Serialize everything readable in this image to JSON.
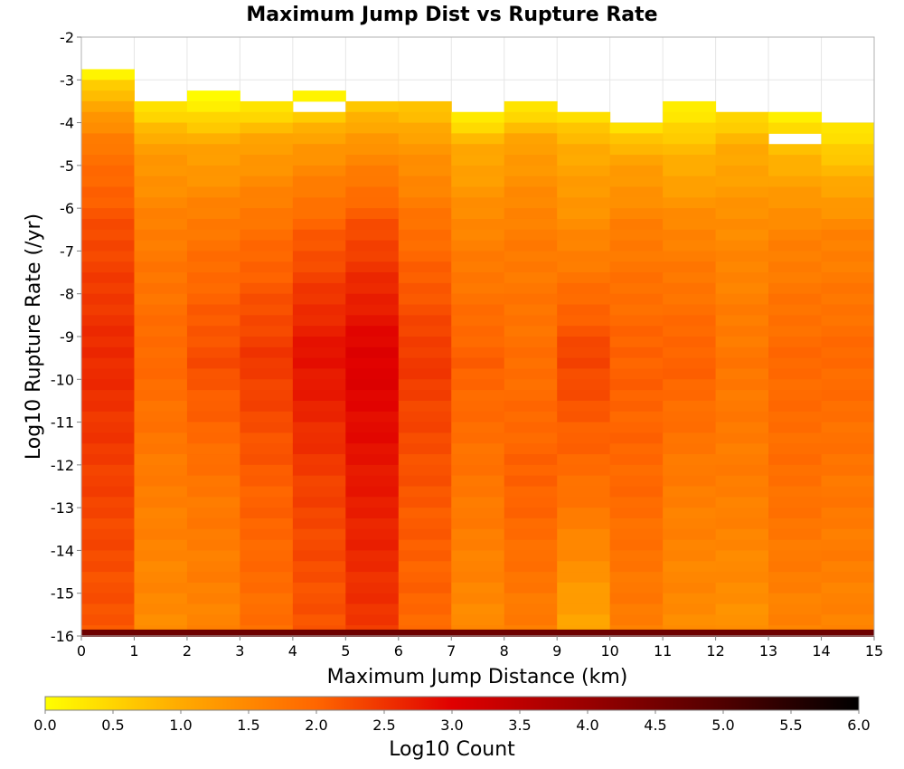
{
  "chart_data": {
    "type": "heatmap",
    "title": "Maximum Jump Dist vs Rupture Rate",
    "xlabel": "Maximum Jump Distance (km)",
    "ylabel": "Log10 Rupture Rate (/yr)",
    "xlim": [
      0,
      15
    ],
    "ylim": [
      -16,
      -2
    ],
    "x_ticks": [
      "0",
      "1",
      "2",
      "3",
      "4",
      "5",
      "6",
      "7",
      "8",
      "9",
      "10",
      "11",
      "12",
      "13",
      "14",
      "15"
    ],
    "y_ticks": [
      "-2",
      "-3",
      "-4",
      "-5",
      "-6",
      "-7",
      "-8",
      "-9",
      "-10",
      "-11",
      "-12",
      "-13",
      "-14",
      "-15",
      "-16"
    ],
    "x_bin_width": 1,
    "y_bin_height": 0.25,
    "colorbar": {
      "label": "Log10 Count",
      "range": [
        0,
        6
      ],
      "ticks": [
        "0.0",
        "0.5",
        "1.0",
        "1.5",
        "2.0",
        "2.5",
        "3.0",
        "3.5",
        "4.0",
        "4.5",
        "5.0",
        "5.5",
        "6.0"
      ],
      "stops": [
        {
          "value": 0.0,
          "color": "#ffff00"
        },
        {
          "value": 1.0,
          "color": "#ffaa00"
        },
        {
          "value": 2.0,
          "color": "#ff6600"
        },
        {
          "value": 3.0,
          "color": "#e00000"
        },
        {
          "value": 4.0,
          "color": "#990000"
        },
        {
          "value": 5.0,
          "color": "#500000"
        },
        {
          "value": 6.0,
          "color": "#000000"
        }
      ]
    },
    "grid": true,
    "columns": [
      {
        "x": 0,
        "top": -2.75,
        "profile": [
          [
            -2.75,
            0.1
          ],
          [
            -3.25,
            0.9
          ],
          [
            -4.5,
            1.9
          ],
          [
            -6.5,
            2.4
          ],
          [
            -9.5,
            2.75
          ],
          [
            -12.5,
            2.5
          ],
          [
            -15.75,
            2.3
          ]
        ],
        "gaps": []
      },
      {
        "x": 1,
        "top": -3.5,
        "profile": [
          [
            -3.5,
            0.3
          ],
          [
            -4.5,
            1.3
          ],
          [
            -6.5,
            1.8
          ],
          [
            -9.5,
            2.1
          ],
          [
            -12.5,
            1.8
          ],
          [
            -15.75,
            1.6
          ]
        ],
        "gaps": []
      },
      {
        "x": 2,
        "top": -3.25,
        "profile": [
          [
            -3.25,
            0.0
          ],
          [
            -4.5,
            1.2
          ],
          [
            -6.5,
            1.9
          ],
          [
            -9.5,
            2.4
          ],
          [
            -12.5,
            1.9
          ],
          [
            -15.75,
            1.7
          ]
        ],
        "gaps": []
      },
      {
        "x": 3,
        "top": -3.5,
        "profile": [
          [
            -3.5,
            0.3
          ],
          [
            -4.5,
            1.3
          ],
          [
            -6.5,
            2.0
          ],
          [
            -9.5,
            2.6
          ],
          [
            -12.5,
            2.2
          ],
          [
            -15.75,
            2.0
          ]
        ],
        "gaps": []
      },
      {
        "x": 4,
        "top": -3.25,
        "profile": [
          [
            -3.25,
            0.1
          ],
          [
            -4.5,
            1.4
          ],
          [
            -6.5,
            2.2
          ],
          [
            -9.5,
            3.0
          ],
          [
            -12.5,
            2.5
          ],
          [
            -15.75,
            2.3
          ]
        ],
        "gaps": [
          [
            -3.75,
            -3.5
          ]
        ]
      },
      {
        "x": 5,
        "top": -3.5,
        "profile": [
          [
            -3.5,
            0.7
          ],
          [
            -4.5,
            1.5
          ],
          [
            -6.5,
            2.4
          ],
          [
            -9.5,
            3.2
          ],
          [
            -12.5,
            2.9
          ],
          [
            -15.75,
            2.6
          ]
        ],
        "gaps": []
      },
      {
        "x": 6,
        "top": -3.5,
        "profile": [
          [
            -3.5,
            0.7
          ],
          [
            -4.5,
            1.4
          ],
          [
            -6.5,
            2.0
          ],
          [
            -9.5,
            2.6
          ],
          [
            -12.5,
            2.3
          ],
          [
            -15.75,
            2.1
          ]
        ],
        "gaps": []
      },
      {
        "x": 7,
        "top": -3.75,
        "profile": [
          [
            -3.75,
            0.2
          ],
          [
            -4.5,
            1.1
          ],
          [
            -6.5,
            1.7
          ],
          [
            -9.5,
            2.2
          ],
          [
            -12.5,
            1.9
          ],
          [
            -15.75,
            1.6
          ]
        ],
        "gaps": []
      },
      {
        "x": 8,
        "top": -3.5,
        "profile": [
          [
            -3.5,
            0.3
          ],
          [
            -4.5,
            1.3
          ],
          [
            -6.5,
            1.8
          ],
          [
            -9.5,
            2.0
          ],
          [
            -12.5,
            2.2
          ],
          [
            -15.75,
            1.8
          ]
        ],
        "gaps": []
      },
      {
        "x": 9,
        "top": -3.75,
        "profile": [
          [
            -3.75,
            0.4
          ],
          [
            -4.5,
            1.1
          ],
          [
            -6.5,
            1.6
          ],
          [
            -9.5,
            2.5
          ],
          [
            -12.5,
            2.0
          ],
          [
            -15.75,
            1.2
          ]
        ],
        "gaps": []
      },
      {
        "x": 10,
        "top": -4.0,
        "profile": [
          [
            -4.0,
            0.4
          ],
          [
            -4.75,
            1.2
          ],
          [
            -6.5,
            1.8
          ],
          [
            -9.5,
            2.2
          ],
          [
            -12.5,
            2.1
          ],
          [
            -15.75,
            1.8
          ]
        ],
        "gaps": []
      },
      {
        "x": 11,
        "top": -3.5,
        "profile": [
          [
            -3.5,
            0.2
          ],
          [
            -4.5,
            0.9
          ],
          [
            -6.5,
            1.7
          ],
          [
            -9.5,
            2.2
          ],
          [
            -12.5,
            1.8
          ],
          [
            -15.75,
            1.6
          ]
        ],
        "gaps": []
      },
      {
        "x": 12,
        "top": -3.75,
        "profile": [
          [
            -3.75,
            0.5
          ],
          [
            -4.5,
            1.1
          ],
          [
            -6.5,
            1.6
          ],
          [
            -9.5,
            1.9
          ],
          [
            -12.5,
            1.8
          ],
          [
            -15.75,
            1.5
          ]
        ],
        "gaps": []
      },
      {
        "x": 13,
        "top": -3.75,
        "profile": [
          [
            -3.75,
            0.3
          ],
          [
            -4.75,
            1.0
          ],
          [
            -6.5,
            1.7
          ],
          [
            -9.5,
            2.1
          ],
          [
            -12.5,
            2.0
          ],
          [
            -15.75,
            1.7
          ]
        ],
        "gaps": [
          [
            -4.5,
            -4.25
          ]
        ]
      },
      {
        "x": 14,
        "top": -4.0,
        "profile": [
          [
            -4.0,
            0.3
          ],
          [
            -4.75,
            0.8
          ],
          [
            -6.5,
            1.7
          ],
          [
            -9.5,
            2.1
          ],
          [
            -12.5,
            1.9
          ],
          [
            -15.75,
            1.7
          ]
        ],
        "gaps": []
      }
    ],
    "bottom_row": {
      "y": -16,
      "value": 4.6
    }
  }
}
